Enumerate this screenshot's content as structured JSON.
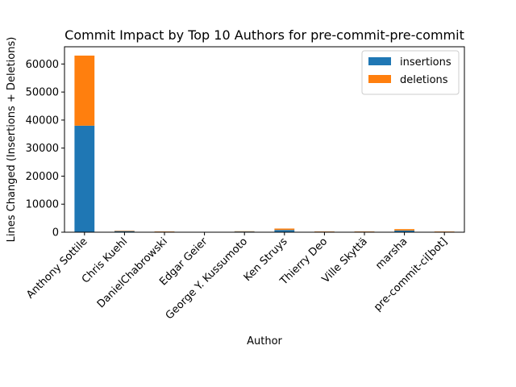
{
  "chart_data": {
    "type": "bar",
    "stacked": true,
    "title": "Commit Impact by Top 10 Authors for pre-commit-pre-commit",
    "xlabel": "Author",
    "ylabel": "Lines Changed (Insertions + Deletions)",
    "categories": [
      "Anthony Sottile",
      "Chris Kuehl",
      "DanielChabrowski",
      "Edgar Geier",
      "George Y. Kussumoto",
      "Ken Struys",
      "Thierry Deo",
      "Ville Skyttä",
      "marsha",
      "pre-commit-ci[bot]"
    ],
    "series": [
      {
        "name": "insertions",
        "color": "#1f77b4",
        "values": [
          38000,
          400,
          200,
          50,
          250,
          800,
          200,
          200,
          600,
          150
        ]
      },
      {
        "name": "deletions",
        "color": "#ff7f0e",
        "values": [
          25000,
          150,
          100,
          30,
          100,
          500,
          100,
          100,
          500,
          100
        ]
      }
    ],
    "ylim": [
      0,
      66150
    ],
    "yticks": [
      0,
      10000,
      20000,
      30000,
      40000,
      50000,
      60000
    ],
    "ytick_labels": [
      "0",
      "10000",
      "20000",
      "30000",
      "40000",
      "50000",
      "60000"
    ],
    "legend_position": "top-right",
    "grid": false
  }
}
